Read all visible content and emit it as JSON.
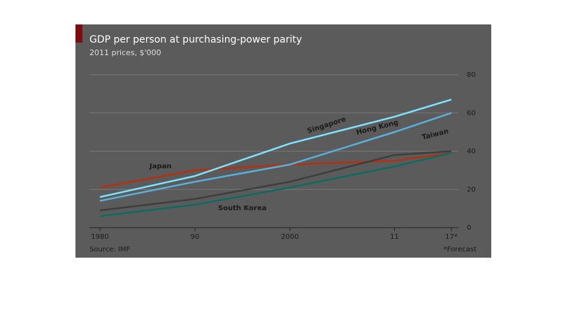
{
  "chart_data": {
    "type": "line",
    "title": "GDP per person at purchasing-power parity",
    "subtitle": "2011 prices, $'000",
    "source": "Source: IMF",
    "note": "*Forecast",
    "x": [
      1980,
      1990,
      2000,
      2011,
      2017
    ],
    "xlim": [
      1980,
      2017
    ],
    "xticks": [
      1980,
      {
        "value": 1990,
        "label": "90"
      },
      2000,
      {
        "value": 2011,
        "label": "11"
      },
      {
        "value": 2017,
        "label": "17*"
      }
    ],
    "ylim": [
      0,
      80
    ],
    "yticks": [
      0,
      20,
      40,
      60,
      80
    ],
    "grid": true,
    "series": [
      {
        "name": "Japan",
        "color": "#b5300f",
        "values": [
          21,
          30,
          33,
          35,
          39
        ]
      },
      {
        "name": "Singapore",
        "color": "#7fe3ff",
        "values": [
          16,
          27,
          44,
          58,
          67
        ]
      },
      {
        "name": "Hong Kong",
        "color": "#5ab0dc",
        "values": [
          14,
          24,
          33,
          50,
          60
        ]
      },
      {
        "name": "Taiwan",
        "color": "#3e3e3e",
        "values": [
          9,
          15,
          24,
          38,
          40
        ]
      },
      {
        "name": "South Korea",
        "color": "#0d6b62",
        "values": [
          6,
          12,
          21,
          32,
          39
        ]
      }
    ]
  }
}
